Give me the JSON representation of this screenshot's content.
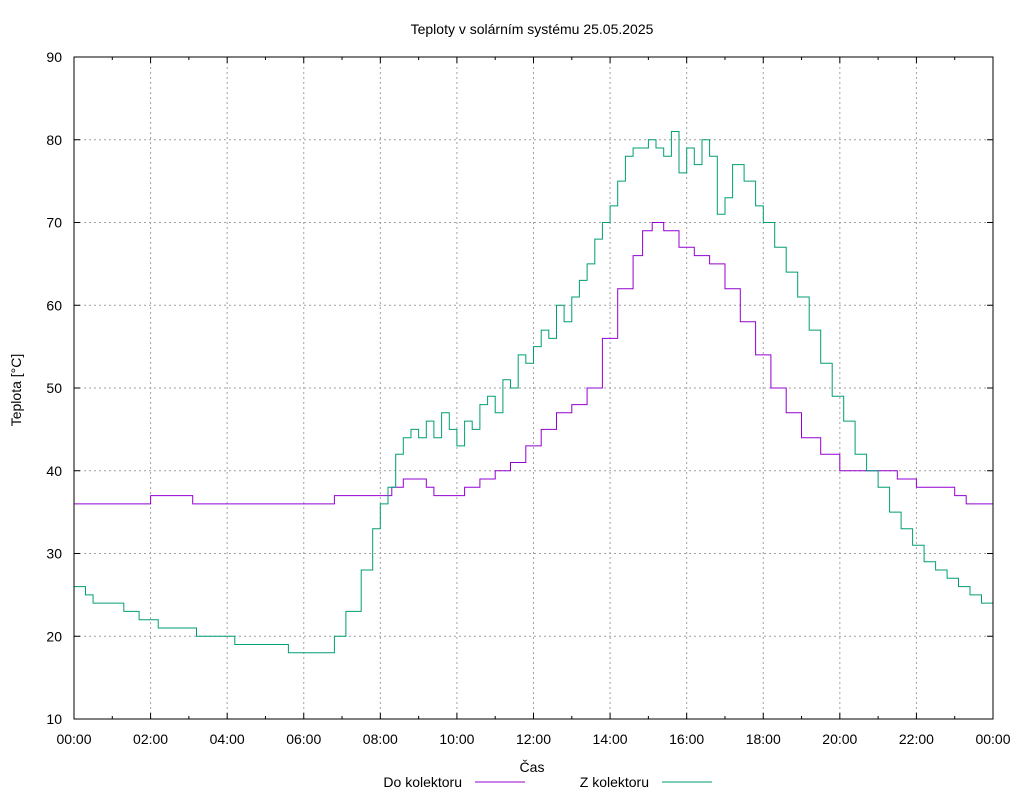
{
  "chart_data": {
    "type": "line",
    "title": "Teploty v solárním systému 25.05.2025",
    "xlabel": "Čas",
    "ylabel": "Teplota [°C]",
    "ylim": [
      10,
      90
    ],
    "xlim": [
      0,
      24
    ],
    "grid": true,
    "legend_position": "bottom",
    "x_ticks": [
      0,
      2,
      4,
      6,
      8,
      10,
      12,
      14,
      16,
      18,
      20,
      22,
      24
    ],
    "x_tick_labels": [
      "00:00",
      "02:00",
      "04:00",
      "06:00",
      "08:00",
      "10:00",
      "12:00",
      "14:00",
      "16:00",
      "18:00",
      "20:00",
      "22:00",
      "00:00"
    ],
    "y_ticks": [
      10,
      20,
      30,
      40,
      50,
      60,
      70,
      80,
      90
    ],
    "series": [
      {
        "name": "Do kolektoru",
        "color": "#9400d3",
        "x": [
          0,
          1.9,
          2.0,
          3.0,
          3.1,
          6.7,
          6.8,
          7.0,
          8.0,
          8.3,
          8.6,
          8.9,
          9.2,
          9.4,
          9.8,
          10.2,
          10.6,
          11.0,
          11.4,
          11.8,
          12.2,
          12.6,
          13.0,
          13.4,
          13.8,
          14.2,
          14.6,
          14.85,
          15.1,
          15.4,
          15.8,
          16.2,
          16.6,
          17.0,
          17.4,
          17.8,
          18.2,
          18.6,
          19.0,
          19.5,
          20.0,
          20.5,
          21.0,
          21.5,
          22.0,
          22.4,
          23.0,
          23.3,
          24.0
        ],
        "y": [
          36,
          36,
          37,
          37,
          36,
          36,
          37,
          37,
          37,
          38,
          39,
          39,
          38,
          37,
          37,
          38,
          39,
          40,
          41,
          43,
          45,
          47,
          48,
          50,
          56,
          62,
          66,
          69,
          70,
          69,
          67,
          66,
          65,
          62,
          58,
          54,
          50,
          47,
          44,
          42,
          40,
          40,
          40,
          39,
          38,
          38,
          37,
          36,
          36
        ]
      },
      {
        "name": "Z kolektoru",
        "color": "#009e73",
        "x": [
          0,
          0.3,
          0.5,
          0.8,
          1.3,
          1.7,
          2.2,
          2.6,
          3.2,
          3.6,
          4.2,
          5.0,
          5.6,
          6.1,
          6.5,
          6.8,
          7.1,
          7.5,
          7.8,
          8.0,
          8.2,
          8.4,
          8.6,
          8.8,
          9.0,
          9.2,
          9.4,
          9.6,
          9.8,
          10.0,
          10.2,
          10.4,
          10.6,
          10.8,
          11.0,
          11.2,
          11.4,
          11.6,
          11.8,
          12.0,
          12.2,
          12.4,
          12.6,
          12.8,
          13.0,
          13.2,
          13.4,
          13.6,
          13.8,
          14.0,
          14.2,
          14.4,
          14.6,
          14.8,
          15.0,
          15.2,
          15.4,
          15.6,
          15.8,
          16.0,
          16.2,
          16.4,
          16.6,
          16.8,
          17.0,
          17.2,
          17.5,
          17.8,
          18.0,
          18.3,
          18.6,
          18.9,
          19.2,
          19.5,
          19.8,
          20.1,
          20.4,
          20.7,
          21.0,
          21.3,
          21.6,
          21.9,
          22.2,
          22.5,
          22.8,
          23.1,
          23.4,
          23.7,
          24.0
        ],
        "y": [
          26,
          25,
          24,
          24,
          23,
          22,
          21,
          21,
          20,
          20,
          19,
          19,
          18,
          18,
          18,
          20,
          23,
          28,
          33,
          36,
          38,
          42,
          44,
          45,
          44,
          46,
          44,
          47,
          45,
          43,
          46,
          45,
          48,
          49,
          47,
          51,
          50,
          54,
          53,
          55,
          57,
          56,
          60,
          58,
          61,
          63,
          65,
          68,
          70,
          72,
          75,
          78,
          79,
          79,
          80,
          79,
          78,
          81,
          76,
          79,
          77,
          80,
          78,
          71,
          73,
          77,
          75,
          72,
          70,
          67,
          64,
          61,
          57,
          53,
          49,
          46,
          42,
          40,
          38,
          35,
          33,
          31,
          29,
          28,
          27,
          26,
          25,
          24,
          23
        ]
      }
    ]
  }
}
